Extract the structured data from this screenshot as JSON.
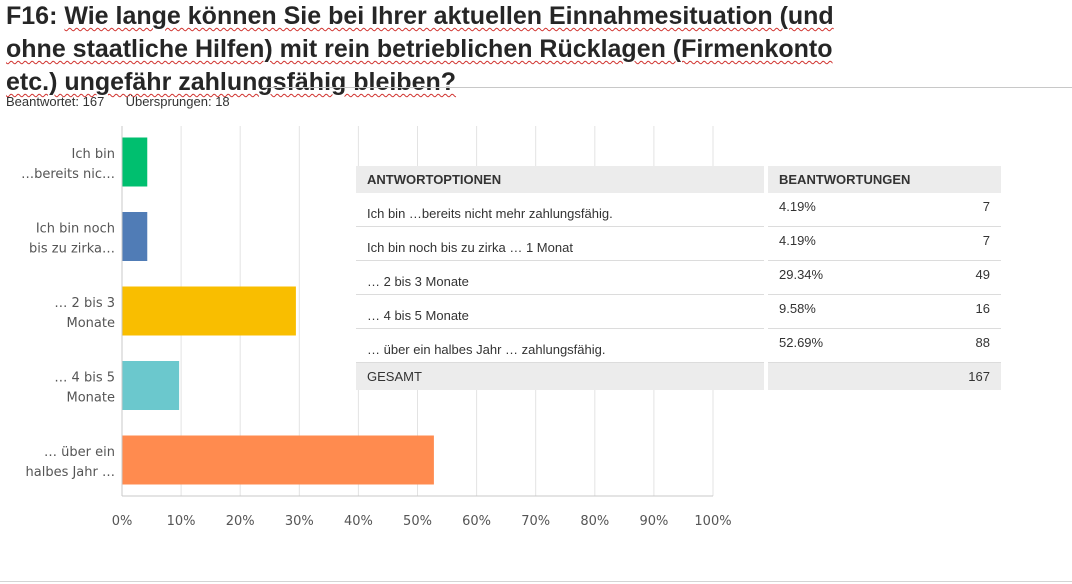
{
  "title": {
    "prefix": "F16:",
    "line1": "Wie lange können Sie bei Ihrer aktuellen Einnahmesituation (und",
    "line2": "ohne staatliche Hilfen) mit rein betrieblichen Rücklagen (Firmenkonto",
    "line3": "etc.) ungefähr zahlungsfähig bleiben?"
  },
  "stats": {
    "answered_label": "Beantwortet:",
    "answered": "167",
    "skipped_label": "Übersprungen:",
    "skipped": "18"
  },
  "chart_data": {
    "type": "bar",
    "orientation": "horizontal",
    "categories": [
      [
        "Ich bin",
        "…bereits nic…"
      ],
      [
        "Ich bin noch",
        "bis zu zirka…"
      ],
      [
        "… 2 bis 3",
        "Monate"
      ],
      [
        "… 4 bis 5",
        "Monate"
      ],
      [
        "… über ein",
        "halbes Jahr …"
      ]
    ],
    "values": [
      4.19,
      4.19,
      29.34,
      9.58,
      52.69
    ],
    "colors": [
      "#00bf6f",
      "#507cb6",
      "#f9be00",
      "#6bc8cd",
      "#ff8b4f"
    ],
    "xlim": [
      0,
      100
    ],
    "xticks": [
      "0%",
      "10%",
      "20%",
      "30%",
      "40%",
      "50%",
      "60%",
      "70%",
      "80%",
      "90%",
      "100%"
    ],
    "grid": true
  },
  "table": {
    "headers": [
      "ANTWORTOPTIONEN",
      "BEANTWORTUNGEN"
    ],
    "rows": [
      {
        "option": "Ich bin …bereits nicht mehr zahlungsfähig.",
        "percent": "4.19%",
        "count": "7"
      },
      {
        "option": "Ich bin noch bis zu zirka … 1 Monat",
        "percent": "4.19%",
        "count": "7"
      },
      {
        "option": "… 2 bis 3 Monate",
        "percent": "29.34%",
        "count": "49"
      },
      {
        "option": "… 4 bis 5 Monate",
        "percent": "9.58%",
        "count": "16"
      },
      {
        "option": "… über ein halbes Jahr … zahlungsfähig.",
        "percent": "52.69%",
        "count": "88"
      }
    ],
    "total_label": "GESAMT",
    "total": "167"
  }
}
